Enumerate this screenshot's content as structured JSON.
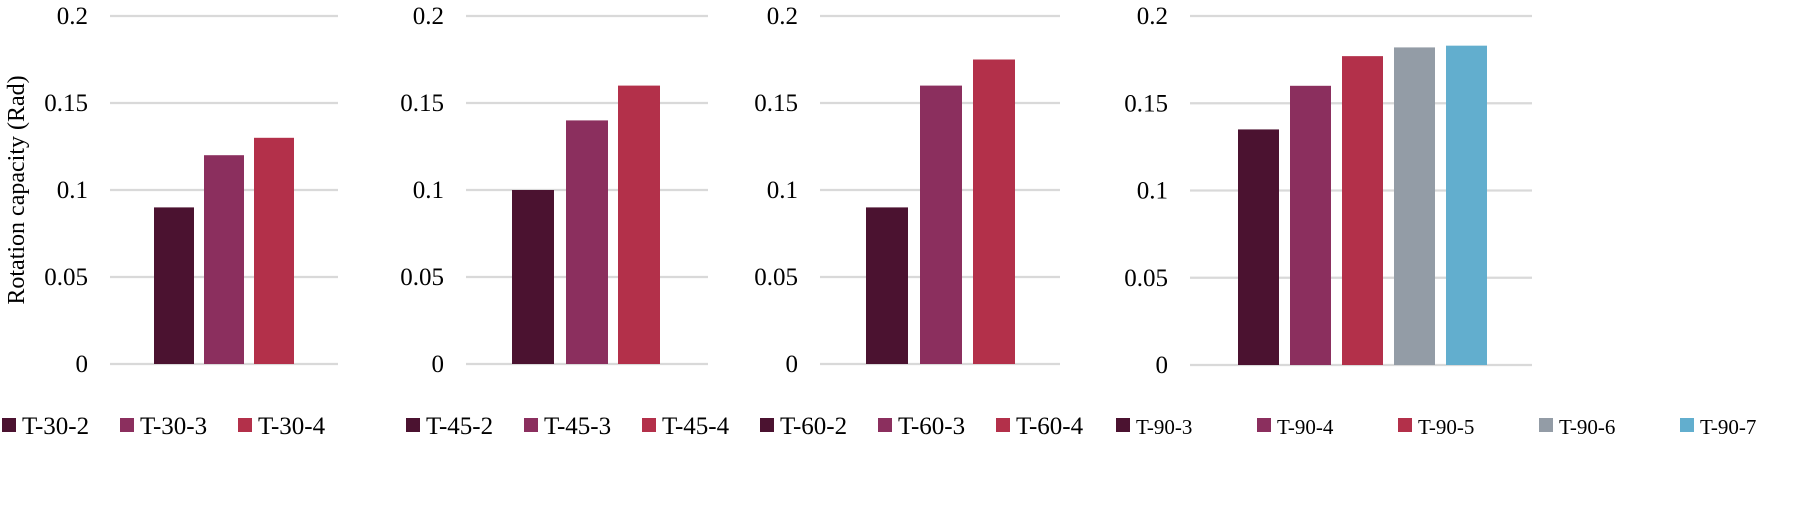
{
  "chart_data": {
    "ylabel": "Rotation capacity (Rad)",
    "palette": [
      "#4b1230",
      "#8b2f5e",
      "#b3304a",
      "#939ca6",
      "#62aece"
    ],
    "panels": [
      {
        "type": "bar",
        "categories": [
          "T-30-2",
          "T-30-3",
          "T-30-4"
        ],
        "values": [
          0.09,
          0.12,
          0.13
        ],
        "ylim": [
          0,
          0.2
        ],
        "yticks": [
          "0",
          "0.05",
          "0.1",
          "0.15",
          "0.2"
        ],
        "grid": true,
        "legend": "bottom"
      },
      {
        "type": "bar",
        "categories": [
          "T-45-2",
          "T-45-3",
          "T-45-4"
        ],
        "values": [
          0.1,
          0.14,
          0.16
        ],
        "ylim": [
          0,
          0.2
        ],
        "yticks": [
          "0",
          "0.05",
          "0.1",
          "0.15",
          "0.2"
        ],
        "grid": true,
        "legend": "bottom"
      },
      {
        "type": "bar",
        "categories": [
          "T-60-2",
          "T-60-3",
          "T-60-4"
        ],
        "values": [
          0.09,
          0.16,
          0.175
        ],
        "ylim": [
          0,
          0.2
        ],
        "yticks": [
          "0",
          "0.05",
          "0.1",
          "0.15",
          "0.2"
        ],
        "grid": true,
        "legend": "bottom"
      },
      {
        "type": "bar",
        "categories": [
          "T-90-3",
          "T-90-4",
          "T-90-5",
          "T-90-6",
          "T-90-7"
        ],
        "values": [
          0.135,
          0.16,
          0.177,
          0.182,
          0.183
        ],
        "ylim": [
          0,
          0.2
        ],
        "yticks": [
          "0",
          "0.05",
          "0.1",
          "0.15",
          "0.2"
        ],
        "grid": true,
        "legend": "bottom"
      }
    ]
  }
}
